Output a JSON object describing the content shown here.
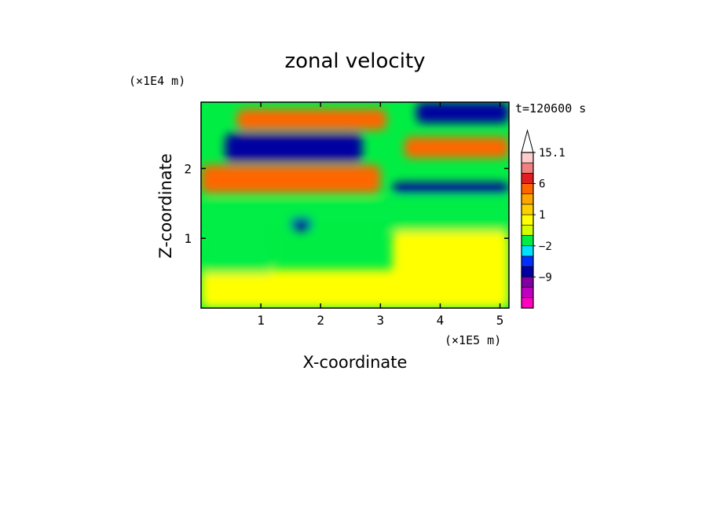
{
  "chart_data": {
    "type": "heatmap",
    "title": "zonal velocity",
    "xlabel": "X-coordinate",
    "ylabel": "Z-coordinate",
    "x_scale_label": "(×1E5 m)",
    "y_scale_label": "(×1E4 m)",
    "time_label": "t=120600 s",
    "xlim": [
      0,
      5.15
    ],
    "ylim": [
      0,
      2.95
    ],
    "x_ticks": [
      "1",
      "2",
      "3",
      "4",
      "5"
    ],
    "y_ticks": [
      "1",
      "2"
    ],
    "colorbar": {
      "extend": "max",
      "tick_labels": [
        "15.1",
        "6",
        "1",
        "−2",
        "−9"
      ],
      "levels": [
        {
          "upper": 15.1,
          "color": "#ffcccc"
        },
        {
          "upper": 12,
          "color": "#f08080"
        },
        {
          "upper": 9,
          "color": "#e02020"
        },
        {
          "upper": 6,
          "color": "#ff6600"
        },
        {
          "upper": 3,
          "color": "#ffa500"
        },
        {
          "upper": 2,
          "color": "#ffd000"
        },
        {
          "upper": 1,
          "color": "#ffff00"
        },
        {
          "upper": 0,
          "color": "#d4ff00"
        },
        {
          "upper": -1,
          "color": "#00ee44"
        },
        {
          "upper": -2,
          "color": "#00e0ff"
        },
        {
          "upper": -3,
          "color": "#0030ff"
        },
        {
          "upper": -6,
          "color": "#0000a0"
        },
        {
          "upper": -9,
          "color": "#8000a0"
        },
        {
          "upper": -12,
          "color": "#c000c0"
        },
        {
          "upper": -15,
          "color": "#ff00c0"
        }
      ]
    },
    "field_regions": [
      {
        "x": [
          0,
          5.15
        ],
        "z": [
          0,
          0.55
        ],
        "value": 0.5
      },
      {
        "x": [
          0,
          1.2
        ],
        "z": [
          0.5,
          1.1
        ],
        "value": -1.5
      },
      {
        "x": [
          3.2,
          5.15
        ],
        "z": [
          0.3,
          1.1
        ],
        "value": 0.5
      },
      {
        "x": [
          0,
          5.15
        ],
        "z": [
          1.1,
          1.55
        ],
        "value": -1.5
      },
      {
        "x": [
          0,
          3.0
        ],
        "z": [
          1.65,
          2.05
        ],
        "value": 4
      },
      {
        "x": [
          3.2,
          5.15
        ],
        "z": [
          1.65,
          1.8
        ],
        "value": -8
      },
      {
        "x": [
          0.4,
          2.7
        ],
        "z": [
          2.1,
          2.5
        ],
        "value": -8
      },
      {
        "x": [
          3.4,
          5.15
        ],
        "z": [
          2.15,
          2.45
        ],
        "value": 4
      },
      {
        "x": [
          0.6,
          3.1
        ],
        "z": [
          2.55,
          2.85
        ],
        "value": 5
      },
      {
        "x": [
          3.6,
          5.15
        ],
        "z": [
          2.65,
          2.95
        ],
        "value": -8
      },
      {
        "x": [
          1.5,
          1.85
        ],
        "z": [
          1.1,
          1.3
        ],
        "value": -8
      }
    ]
  }
}
